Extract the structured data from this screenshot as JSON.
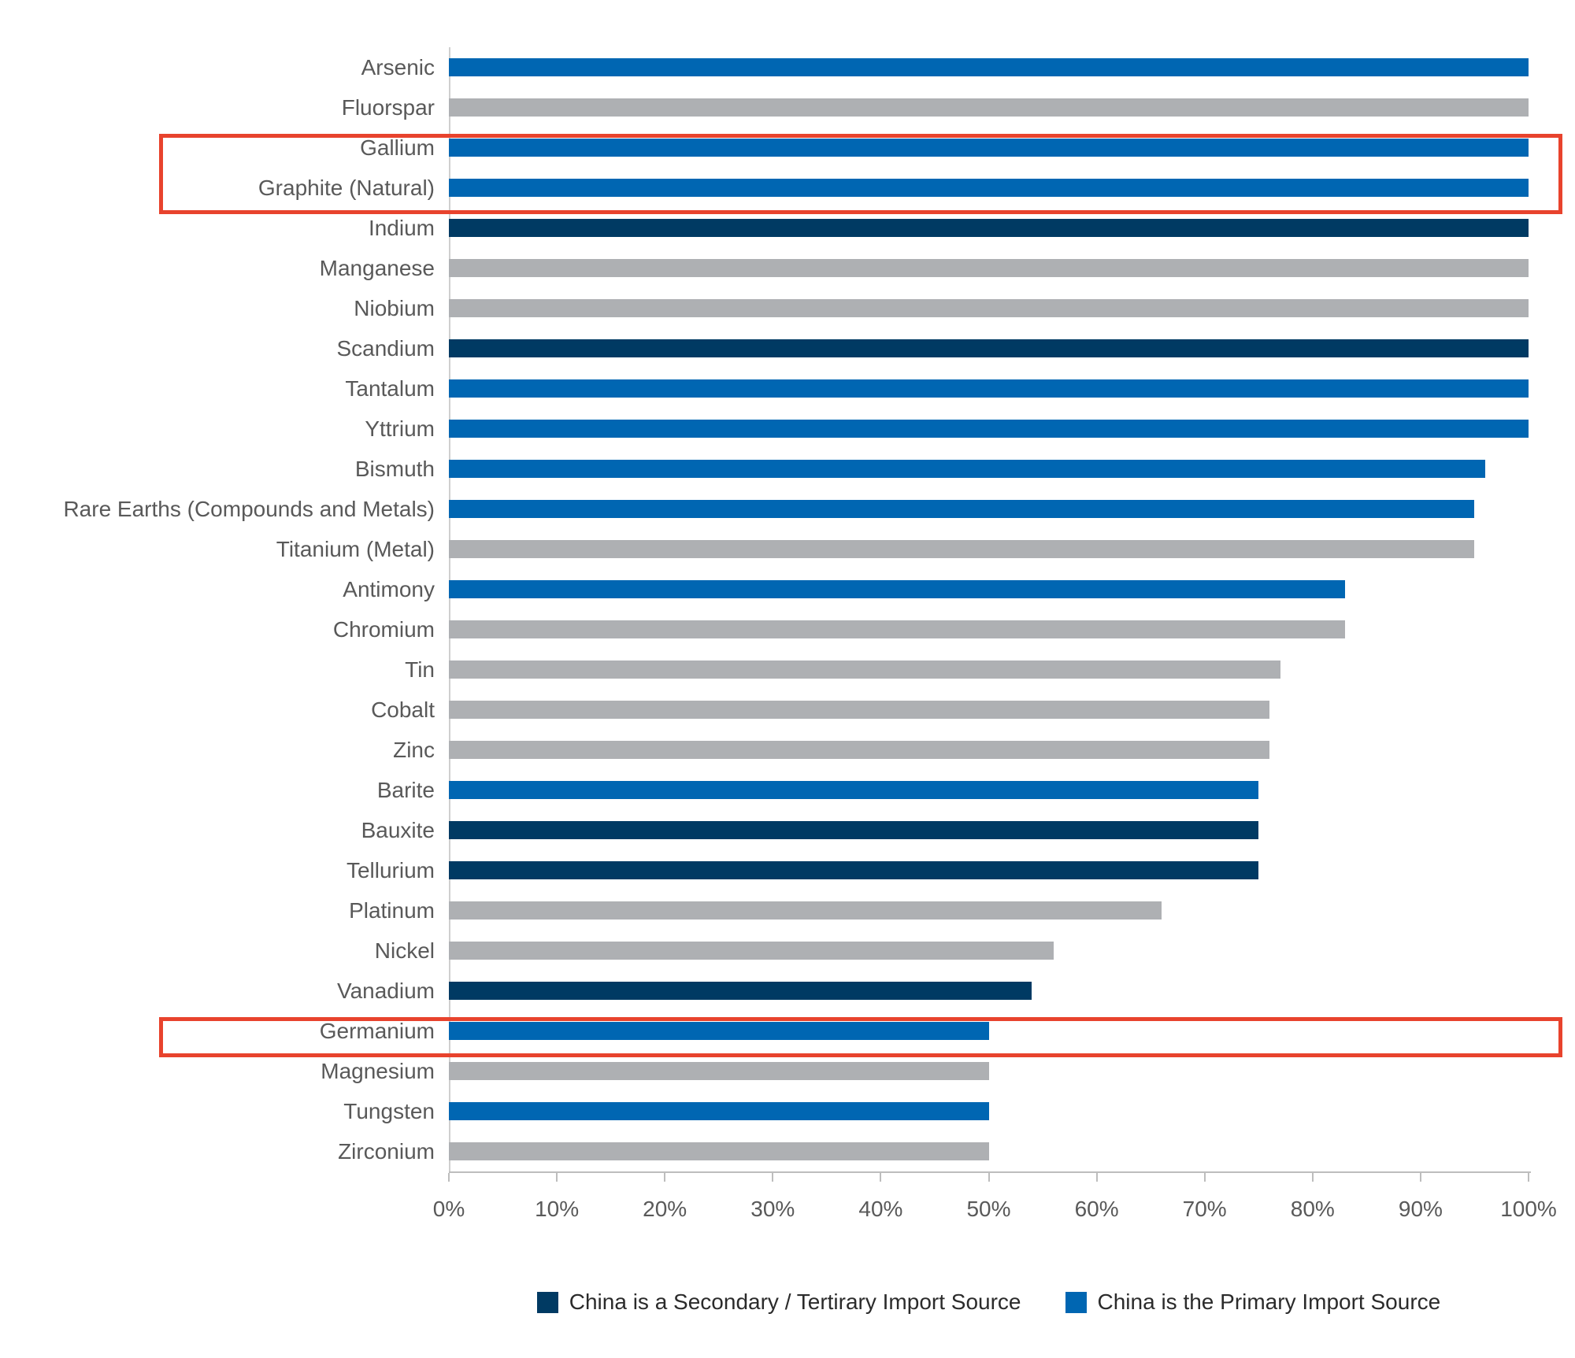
{
  "chart_data": {
    "type": "bar",
    "orientation": "horizontal",
    "title": "",
    "xlabel": "",
    "ylabel": "",
    "xlim": [
      0,
      100
    ],
    "x_tick_labels": [
      "0%",
      "10%",
      "20%",
      "30%",
      "40%",
      "50%",
      "60%",
      "70%",
      "80%",
      "90%",
      "100%"
    ],
    "grid": false,
    "legend_position": "bottom-center",
    "bars": [
      {
        "label": "Arsenic",
        "value": 100,
        "group": "primary"
      },
      {
        "label": "Fluorspar",
        "value": 100,
        "group": "other"
      },
      {
        "label": "Gallium",
        "value": 100,
        "group": "primary"
      },
      {
        "label": "Graphite (Natural)",
        "value": 100,
        "group": "primary"
      },
      {
        "label": "Indium",
        "value": 100,
        "group": "secondary"
      },
      {
        "label": "Manganese",
        "value": 100,
        "group": "other"
      },
      {
        "label": "Niobium",
        "value": 100,
        "group": "other"
      },
      {
        "label": "Scandium",
        "value": 100,
        "group": "secondary"
      },
      {
        "label": "Tantalum",
        "value": 100,
        "group": "primary"
      },
      {
        "label": "Yttrium",
        "value": 100,
        "group": "primary"
      },
      {
        "label": "Bismuth",
        "value": 96,
        "group": "primary"
      },
      {
        "label": "Rare Earths (Compounds and Metals)",
        "value": 95,
        "group": "primary"
      },
      {
        "label": "Titanium (Metal)",
        "value": 95,
        "group": "other"
      },
      {
        "label": "Antimony",
        "value": 83,
        "group": "primary"
      },
      {
        "label": "Chromium",
        "value": 83,
        "group": "other"
      },
      {
        "label": "Tin",
        "value": 77,
        "group": "other"
      },
      {
        "label": "Cobalt",
        "value": 76,
        "group": "other"
      },
      {
        "label": "Zinc",
        "value": 76,
        "group": "other"
      },
      {
        "label": "Barite",
        "value": 75,
        "group": "primary"
      },
      {
        "label": "Bauxite",
        "value": 75,
        "group": "secondary"
      },
      {
        "label": "Tellurium",
        "value": 75,
        "group": "secondary"
      },
      {
        "label": "Platinum",
        "value": 66,
        "group": "other"
      },
      {
        "label": "Nickel",
        "value": 56,
        "group": "other"
      },
      {
        "label": "Vanadium",
        "value": 54,
        "group": "secondary"
      },
      {
        "label": "Germanium",
        "value": 50,
        "group": "primary"
      },
      {
        "label": "Magnesium",
        "value": 50,
        "group": "other"
      },
      {
        "label": "Tungsten",
        "value": 50,
        "group": "primary"
      },
      {
        "label": "Zirconium",
        "value": 50,
        "group": "other"
      }
    ],
    "group_colors": {
      "primary": "#0066b2",
      "secondary": "#003a63",
      "other": "#aeb0b3"
    },
    "highlight_boxes": [
      {
        "rows": [
          "Gallium",
          "Graphite (Natural)"
        ],
        "start_index": 2,
        "end_index": 3,
        "color": "#e8432d"
      },
      {
        "rows": [
          "Germanium"
        ],
        "start_index": 24,
        "end_index": 24,
        "color": "#e8432d"
      }
    ]
  },
  "legend": {
    "items": [
      {
        "label": "China is a Secondary / Tertirary Import Source",
        "group": "secondary",
        "color": "#003a63"
      },
      {
        "label": "China is the Primary Import Source",
        "group": "primary",
        "color": "#0066b2"
      }
    ]
  },
  "colors": {
    "bar_primary": "#0066b2",
    "bar_secondary": "#003a63",
    "bar_other": "#aeb0b3",
    "highlight_red": "#e8432d",
    "axis_line": "#c9c9c9",
    "label_text": "#595959",
    "legend_text": "#2b2b2b",
    "background": "#ffffff"
  }
}
